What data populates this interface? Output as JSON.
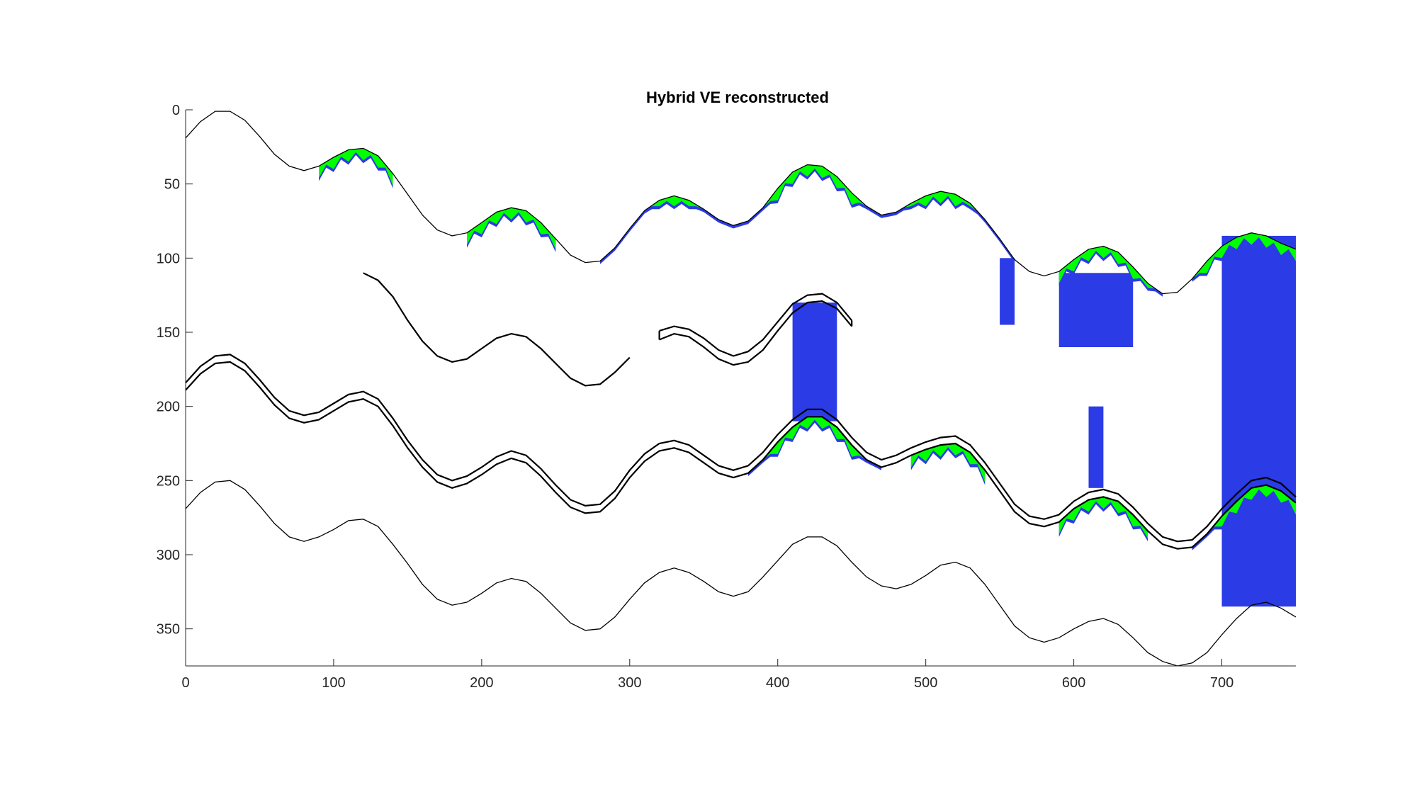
{
  "chart_data": {
    "type": "area",
    "title": "Hybrid VE reconstructed",
    "xlabel": "",
    "ylabel": "",
    "xlim": [
      0,
      750
    ],
    "ylim": [
      0,
      375
    ],
    "y_reversed": true,
    "grid": false,
    "legend": "none",
    "x_ticks": [
      0,
      100,
      200,
      300,
      400,
      500,
      600,
      700
    ],
    "y_ticks": [
      0,
      50,
      100,
      150,
      200,
      250,
      300,
      350
    ],
    "colors": {
      "co2_plume": "#00ff00",
      "residual_co2": "#2b3be6",
      "interface": "#000000",
      "axes": "#262626"
    },
    "lines": [
      {
        "role": "layer-surface-top",
        "x": [
          0,
          10,
          20,
          30,
          40,
          50,
          60,
          70,
          80,
          90,
          100,
          110,
          120,
          130,
          140,
          150,
          160,
          170,
          180,
          190,
          200,
          210,
          220,
          230,
          240,
          250,
          260,
          270,
          280,
          290,
          300,
          310,
          320,
          330,
          340,
          350,
          360,
          370,
          380,
          390,
          400,
          410,
          420,
          430,
          440,
          450,
          460,
          470,
          480,
          490,
          500,
          510,
          520,
          530,
          540,
          550,
          560,
          570,
          580,
          590,
          600,
          610,
          620,
          630,
          640,
          650,
          660,
          670,
          680,
          690,
          700,
          710,
          720,
          730,
          740,
          750
        ],
        "y": [
          19,
          8,
          1,
          1,
          7,
          18,
          30,
          38,
          41,
          38,
          32,
          27,
          26,
          31,
          43,
          57,
          71,
          81,
          85,
          83,
          76,
          69,
          66,
          68,
          76,
          87,
          98,
          103,
          102,
          93,
          80,
          68,
          61,
          58,
          61,
          67,
          74,
          78,
          75,
          66,
          53,
          42,
          37,
          38,
          45,
          56,
          65,
          71,
          69,
          63,
          58,
          55,
          57,
          63,
          74,
          87,
          101,
          109,
          112,
          109,
          101,
          94,
          92,
          96,
          106,
          117,
          124,
          123,
          114,
          102,
          92,
          86,
          83,
          85,
          90,
          94
        ]
      },
      {
        "role": "layer-2-top",
        "x": [
          120,
          130,
          140,
          150,
          160,
          170,
          180,
          190,
          200,
          210,
          220,
          230,
          240,
          250,
          260,
          270,
          280,
          290,
          300
        ],
        "y": [
          110,
          115,
          126,
          142,
          156,
          166,
          170,
          168,
          161,
          154,
          151,
          153,
          161,
          171,
          181,
          186,
          185,
          177,
          167
        ]
      },
      {
        "role": "layer-2-block-top",
        "x": [
          320,
          330,
          340,
          350,
          360,
          370,
          380,
          390,
          400,
          410,
          420,
          430,
          440,
          450
        ],
        "y": [
          149,
          146,
          148,
          154,
          162,
          166,
          163,
          155,
          143,
          131,
          125,
          124,
          130,
          142
        ]
      },
      {
        "role": "layer-2-block-bottom",
        "x": [
          320,
          330,
          340,
          350,
          360,
          370,
          380,
          390,
          400,
          410,
          420,
          430,
          440,
          450
        ],
        "y": [
          155,
          151,
          153,
          160,
          168,
          172,
          170,
          162,
          149,
          137,
          130,
          129,
          134,
          146
        ]
      },
      {
        "role": "layer-3-top",
        "x": [
          0,
          10,
          20,
          30,
          40,
          50,
          60,
          70,
          80,
          90,
          100,
          110,
          120,
          130,
          140,
          150,
          160,
          170,
          180,
          190,
          200,
          210,
          220,
          230,
          240,
          250,
          260,
          270,
          280,
          290,
          300,
          310,
          320,
          330,
          340,
          350,
          360,
          370,
          380,
          390,
          400,
          410,
          420,
          430,
          440,
          450,
          460,
          470,
          480,
          490,
          500,
          510,
          520,
          530,
          540,
          550,
          560,
          570,
          580,
          590,
          600,
          610,
          620,
          630,
          640,
          650,
          660,
          670,
          680,
          690,
          700,
          710,
          720,
          730,
          740,
          750
        ],
        "y": [
          184,
          173,
          166,
          165,
          171,
          182,
          194,
          203,
          206,
          204,
          198,
          192,
          190,
          195,
          208,
          223,
          236,
          246,
          250,
          247,
          241,
          234,
          230,
          233,
          242,
          253,
          263,
          267,
          266,
          257,
          243,
          232,
          225,
          223,
          226,
          233,
          240,
          243,
          240,
          231,
          219,
          209,
          202,
          202,
          209,
          221,
          231,
          236,
          233,
          228,
          224,
          221,
          220,
          226,
          238,
          252,
          266,
          274,
          276,
          273,
          264,
          258,
          256,
          259,
          268,
          279,
          288,
          291,
          290,
          281,
          269,
          259,
          250,
          248,
          252,
          261
        ]
      },
      {
        "role": "layer-3-bottom",
        "x": [
          0,
          10,
          20,
          30,
          40,
          50,
          60,
          70,
          80,
          90,
          100,
          110,
          120,
          130,
          140,
          150,
          160,
          170,
          180,
          190,
          200,
          210,
          220,
          230,
          240,
          250,
          260,
          270,
          280,
          290,
          300,
          310,
          320,
          330,
          340,
          350,
          360,
          370,
          380,
          390,
          400,
          410,
          420,
          430,
          440,
          450,
          460,
          470,
          480,
          490,
          500,
          510,
          520,
          530,
          540,
          550,
          560,
          570,
          580,
          590,
          600,
          610,
          620,
          630,
          640,
          650,
          660,
          670,
          680,
          690,
          700,
          710,
          720,
          730,
          740,
          750
        ],
        "y": [
          189,
          178,
          171,
          170,
          176,
          187,
          199,
          208,
          211,
          209,
          203,
          197,
          195,
          200,
          213,
          228,
          241,
          251,
          255,
          252,
          246,
          239,
          235,
          238,
          247,
          258,
          268,
          272,
          271,
          262,
          248,
          237,
          230,
          228,
          231,
          238,
          245,
          248,
          245,
          236,
          224,
          214,
          207,
          207,
          214,
          226,
          236,
          241,
          238,
          233,
          229,
          226,
          225,
          231,
          243,
          257,
          271,
          279,
          281,
          278,
          269,
          263,
          261,
          264,
          273,
          284,
          293,
          296,
          295,
          286,
          274,
          264,
          255,
          253,
          257,
          265
        ]
      },
      {
        "role": "bottom-boundary",
        "x": [
          0,
          10,
          20,
          30,
          40,
          50,
          60,
          70,
          80,
          90,
          100,
          110,
          120,
          130,
          140,
          150,
          160,
          170,
          180,
          190,
          200,
          210,
          220,
          230,
          240,
          250,
          260,
          270,
          280,
          290,
          300,
          310,
          320,
          330,
          340,
          350,
          360,
          370,
          380,
          390,
          400,
          410,
          420,
          430,
          440,
          450,
          460,
          470,
          480,
          490,
          500,
          510,
          520,
          530,
          540,
          550,
          560,
          570,
          580,
          590,
          600,
          610,
          620,
          630,
          640,
          650,
          660,
          670,
          680,
          690,
          700,
          710,
          720,
          730,
          740,
          750
        ],
        "y": [
          269,
          258,
          251,
          250,
          256,
          267,
          279,
          288,
          291,
          288,
          283,
          277,
          276,
          281,
          293,
          306,
          320,
          330,
          334,
          332,
          326,
          319,
          316,
          318,
          326,
          336,
          346,
          351,
          350,
          342,
          330,
          319,
          312,
          309,
          312,
          318,
          325,
          328,
          325,
          315,
          304,
          293,
          288,
          288,
          294,
          305,
          315,
          321,
          323,
          320,
          314,
          307,
          305,
          309,
          320,
          334,
          348,
          356,
          359,
          356,
          350,
          345,
          343,
          347,
          356,
          366,
          372,
          375,
          373,
          366,
          354,
          343,
          334,
          332,
          336,
          342
        ]
      }
    ],
    "plume_regions": [
      {
        "layer": "top",
        "x_range": [
          90,
          140
        ]
      },
      {
        "layer": "top",
        "x_range": [
          190,
          250
        ]
      },
      {
        "layer": "top",
        "x_range": [
          280,
          560
        ]
      },
      {
        "layer": "top",
        "x_range": [
          590,
          660
        ]
      },
      {
        "layer": "top",
        "x_range": [
          680,
          750
        ]
      },
      {
        "layer": "third",
        "x_range": [
          380,
          470
        ]
      },
      {
        "layer": "third",
        "x_range": [
          490,
          540
        ]
      },
      {
        "layer": "third",
        "x_range": [
          590,
          650
        ]
      },
      {
        "layer": "third",
        "x_range": [
          680,
          750
        ]
      }
    ],
    "residual_columns": [
      {
        "x_range": [
          550,
          560
        ],
        "y_range": [
          100,
          145
        ]
      },
      {
        "x_range": [
          590,
          640
        ],
        "y_range": [
          110,
          160
        ]
      },
      {
        "x_range": [
          410,
          440
        ],
        "y_range": [
          130,
          210
        ]
      },
      {
        "x_range": [
          610,
          620
        ],
        "y_range": [
          200,
          255
        ]
      },
      {
        "x_range": [
          700,
          750
        ],
        "y_range": [
          85,
          335
        ]
      }
    ]
  }
}
